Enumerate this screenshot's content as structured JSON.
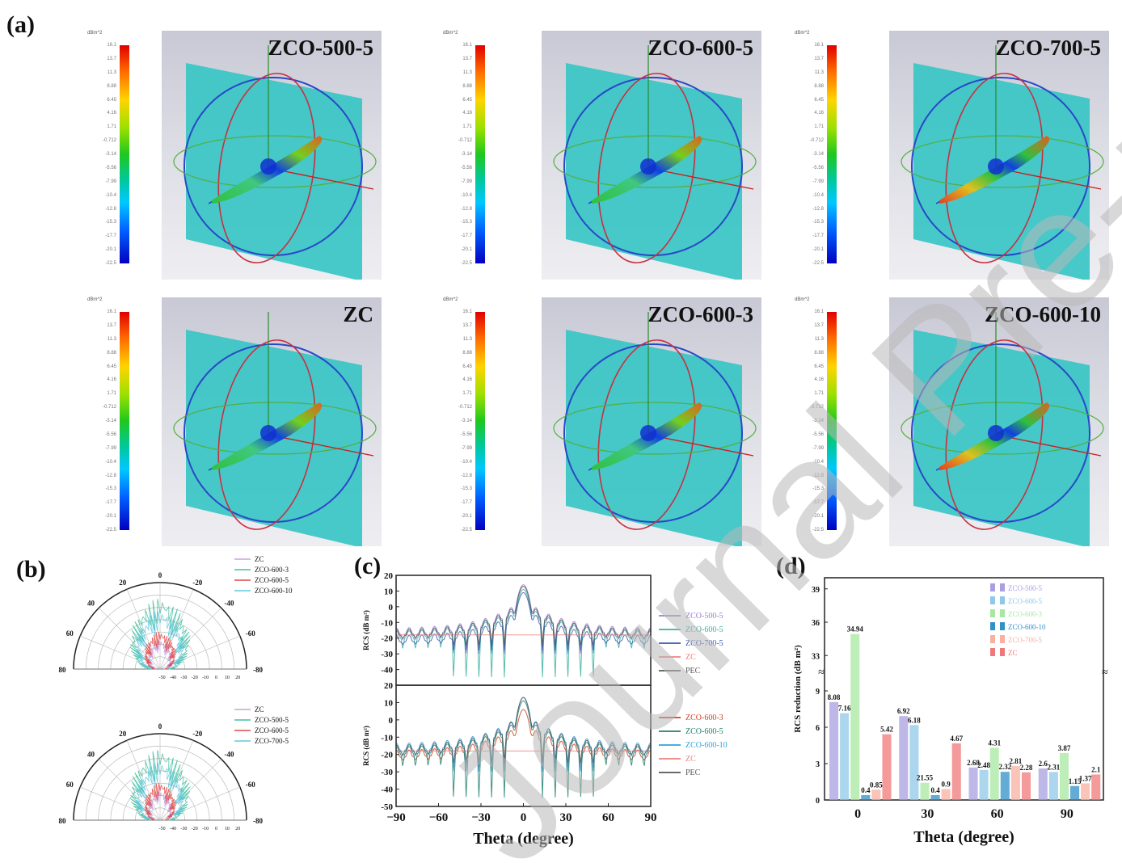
{
  "figure": {
    "panel_labels": {
      "a": "(a)",
      "b": "(b)",
      "c": "(c)",
      "d": "(d)"
    },
    "watermark": "Journal Pre-proof"
  },
  "simulations": {
    "colorbar_unit": "dBm^2",
    "colorbar_ticks": [
      "16.1",
      "13.7",
      "11.3",
      "8.88",
      "6.45",
      "4.16",
      "1.71",
      "-0.712",
      "-3.14",
      "-5.56",
      "-7.99",
      "-10.4",
      "-12.8",
      "-15.3",
      "-17.7",
      "-20.1",
      "-22.5"
    ],
    "panels": [
      {
        "title": "ZCO-500-5",
        "hotspot": "low"
      },
      {
        "title": "ZCO-600-5",
        "hotspot": "low"
      },
      {
        "title": "ZCO-700-5",
        "hotspot": "high"
      },
      {
        "title": "ZC",
        "hotspot": "low"
      },
      {
        "title": "ZCO-600-3",
        "hotspot": "low"
      },
      {
        "title": "ZCO-600-10",
        "hotspot": "high"
      }
    ]
  },
  "chart_data": [
    {
      "id": "b-top",
      "type": "polar",
      "theta_ticks": [
        "80",
        "60",
        "40",
        "20",
        "0",
        "-20",
        "-40",
        "-60",
        "-80"
      ],
      "r_ticks": [
        "-50",
        "-40",
        "-30",
        "-20",
        "-10",
        "0",
        "10",
        "20"
      ],
      "series": [
        {
          "name": "ZC",
          "color": "#c9a0d8"
        },
        {
          "name": "ZCO-600-3",
          "color": "#40c0a0"
        },
        {
          "name": "ZCO-600-5",
          "color": "#e04848"
        },
        {
          "name": "ZCO-600-10",
          "color": "#60c8e0"
        }
      ]
    },
    {
      "id": "b-bottom",
      "type": "polar",
      "theta_ticks": [
        "80",
        "60",
        "40",
        "20",
        "0",
        "-20",
        "-40",
        "-60",
        "-80"
      ],
      "r_ticks": [
        "-50",
        "-40",
        "-30",
        "-20",
        "-10",
        "0",
        "10",
        "20"
      ],
      "series": [
        {
          "name": "ZC",
          "color": "#c9a0d8"
        },
        {
          "name": "ZCO-500-5",
          "color": "#40c0a0"
        },
        {
          "name": "ZCO-600-5",
          "color": "#e04848"
        },
        {
          "name": "ZCO-700-5",
          "color": "#60c8e0"
        }
      ]
    },
    {
      "id": "c",
      "type": "line",
      "xlabel": "Theta (degree)",
      "ylabel": "RCS (dB m²)",
      "xlim": [
        -90,
        90
      ],
      "x_ticks": [
        "-90",
        "-60",
        "-30",
        "0",
        "30",
        "60",
        "90"
      ],
      "subplots": [
        {
          "ylim": [
            -50,
            20
          ],
          "y_ticks": [
            "20",
            "10",
            "0",
            "-10",
            "-20",
            "-30",
            "-40"
          ],
          "series": [
            {
              "name": "ZCO-500-5",
              "color": "#9a7ad8",
              "peak": 14,
              "floor": -18,
              "dip": -30
            },
            {
              "name": "ZCO-600-5",
              "color": "#38b0a0",
              "peak": 11,
              "floor": -20,
              "dip": -45
            },
            {
              "name": "ZCO-700-5",
              "color": "#3a5ab0",
              "peak": 9,
              "floor": -23,
              "dip": -28
            },
            {
              "name": "ZC",
              "color": "#f08080",
              "peak": -18,
              "floor": -18,
              "dip": -18
            },
            {
              "name": "PEC",
              "color": "#555555",
              "peak": 13,
              "floor": -19,
              "dip": -25
            }
          ]
        },
        {
          "ylim": [
            -50,
            20
          ],
          "y_ticks": [
            "20",
            "10",
            "0",
            "-10",
            "-20",
            "-30",
            "-40",
            "-50"
          ],
          "series": [
            {
              "name": "ZCO-600-3",
              "color": "#d04020",
              "peak": 6,
              "floor": -22,
              "dip": -28
            },
            {
              "name": "ZCO-600-5",
              "color": "#208070",
              "peak": 11,
              "floor": -20,
              "dip": -45
            },
            {
              "name": "ZCO-600-10",
              "color": "#30a0e0",
              "peak": 13,
              "floor": -18,
              "dip": -30
            },
            {
              "name": "ZC",
              "color": "#f08080",
              "peak": -18,
              "floor": -18,
              "dip": -18
            },
            {
              "name": "PEC",
              "color": "#555555",
              "peak": 13,
              "floor": -19,
              "dip": -25
            }
          ]
        }
      ]
    },
    {
      "id": "d",
      "type": "bar",
      "xlabel": "Theta (degree)",
      "ylabel": "RCS reduction (dB m²)",
      "categories": [
        "0",
        "30",
        "60",
        "90"
      ],
      "y_ticks_low": [
        "0",
        "3",
        "6",
        "9"
      ],
      "y_ticks_high": [
        "33",
        "36",
        "39"
      ],
      "axis_break": [
        10,
        32
      ],
      "ylim": [
        0,
        40
      ],
      "series": [
        {
          "name": "ZCO-500-5",
          "color": "#a8a0e0",
          "values": [
            8.08,
            6.92,
            2.68,
            2.6
          ]
        },
        {
          "name": "ZCO-600-5",
          "color": "#90c8e8",
          "values": [
            7.16,
            6.18,
            2.48,
            2.31
          ]
        },
        {
          "name": "ZCO-600-3",
          "color": "#a8e8a0",
          "values": [
            34.94,
            21.55,
            4.31,
            3.87
          ]
        },
        {
          "name": "ZCO-600-10",
          "color": "#3090c8",
          "values": [
            0.4,
            0.4,
            2.32,
            1.15
          ]
        },
        {
          "name": "ZCO-700-5",
          "color": "#f8b0a0",
          "values": [
            0.85,
            0.9,
            2.81,
            1.37
          ]
        },
        {
          "name": "ZC",
          "color": "#f07878",
          "values": [
            5.42,
            4.67,
            2.28,
            2.1
          ]
        }
      ],
      "value_labels": [
        [
          "8.08",
          "6.92",
          "2.68",
          "2.6"
        ],
        [
          "7.16",
          "6.18",
          "2.48",
          "2.31"
        ],
        [
          "34.94",
          "21.55",
          "4.31",
          "3.87"
        ],
        [
          "0.4",
          "0.4",
          "2.32",
          "1.15"
        ],
        [
          "0.85",
          "0.9",
          "2.81",
          "1.37"
        ],
        [
          "5.42",
          "4.67",
          "2.28",
          "2.1"
        ]
      ],
      "legend_position": "top-right"
    }
  ]
}
